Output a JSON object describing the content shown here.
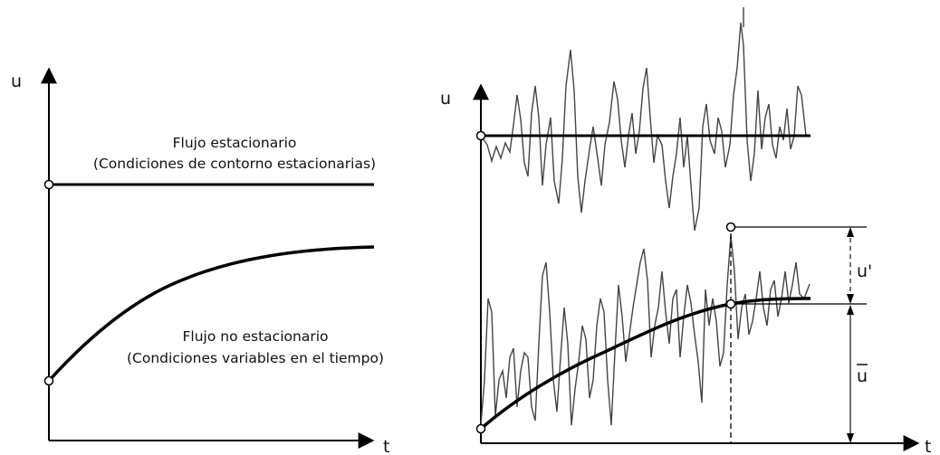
{
  "left_panel": {
    "y_axis_label": "u",
    "x_axis_label": "t",
    "steady_title": "Flujo estacionario",
    "steady_subtitle": "(Condiciones de contorno estacionarias)",
    "unsteady_title": "Flujo  no estacionario",
    "unsteady_subtitle": "(Condiciones variables en el tiempo)"
  },
  "right_panel": {
    "y_axis_label": "u",
    "x_axis_label": "t",
    "fluct_label": "u'",
    "mean_label": "u"
  },
  "colors": {
    "ink": "#000000",
    "thin_line": "#444444"
  }
}
